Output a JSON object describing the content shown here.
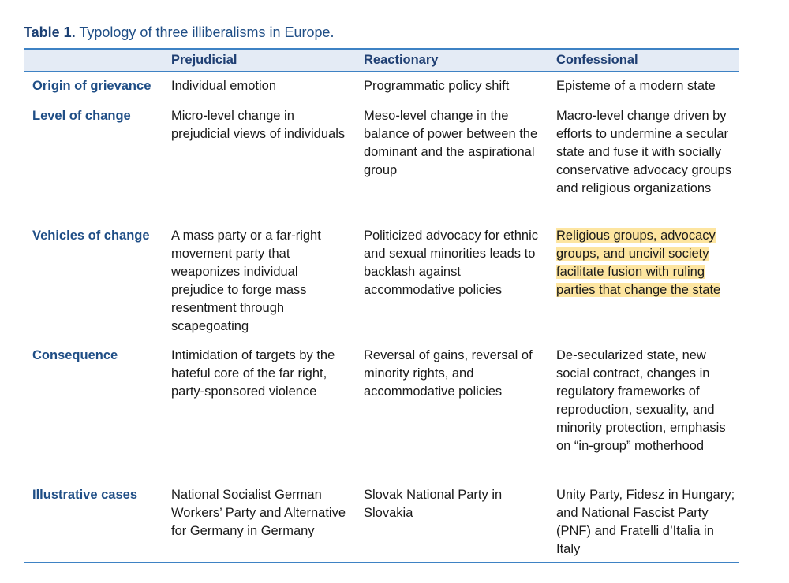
{
  "caption": {
    "label": "Table 1.",
    "title": "Typology of three illiberalisms in Europe."
  },
  "columns": [
    "Prejudicial",
    "Reactionary",
    "Confessional"
  ],
  "rows": [
    {
      "label": "Origin of grievance",
      "cells": [
        "Individual emotion",
        "Programmatic policy shift",
        "Episteme of a modern state"
      ]
    },
    {
      "label": "Level of change",
      "cells": [
        "Micro-level change in prejudicial views of individuals",
        "Meso-level change in the balance of power between the dominant and the aspirational group",
        "Macro-level change driven by efforts to undermine a secular state and fuse it with socially conservative advocacy groups and religious organizations"
      ]
    },
    {
      "label": "Vehicles of change",
      "cells": [
        "A mass party or a far-right movement party that weaponizes individual prejudice to forge mass resentment through scapegoating",
        "Politicized advocacy for ethnic and sexual minorities leads to backlash against accommodative policies",
        "Religious groups, advocacy groups, and uncivil society facilitate fusion with ruling parties that change the state"
      ]
    },
    {
      "label": "Consequence",
      "cells": [
        "Intimidation of targets by the hateful core of the far right, party-sponsored violence",
        "Reversal of gains, reversal of minority rights, and accommodative policies",
        "De-secularized state, new social contract, changes in regulatory frameworks of reproduction, sexuality, and minority protection, emphasis on “in-group” motherhood"
      ]
    },
    {
      "label": "Illustrative cases",
      "cells": [
        "National Socialist German Workers’ Party and Alternative for Germany in Germany",
        "Slovak National Party in Slovakia",
        "Unity Party, Fidesz in Hungary; and National Fascist Party (PNF) and Fratelli d’Italia in Italy"
      ]
    }
  ],
  "highlight_color": "#fde5a0"
}
